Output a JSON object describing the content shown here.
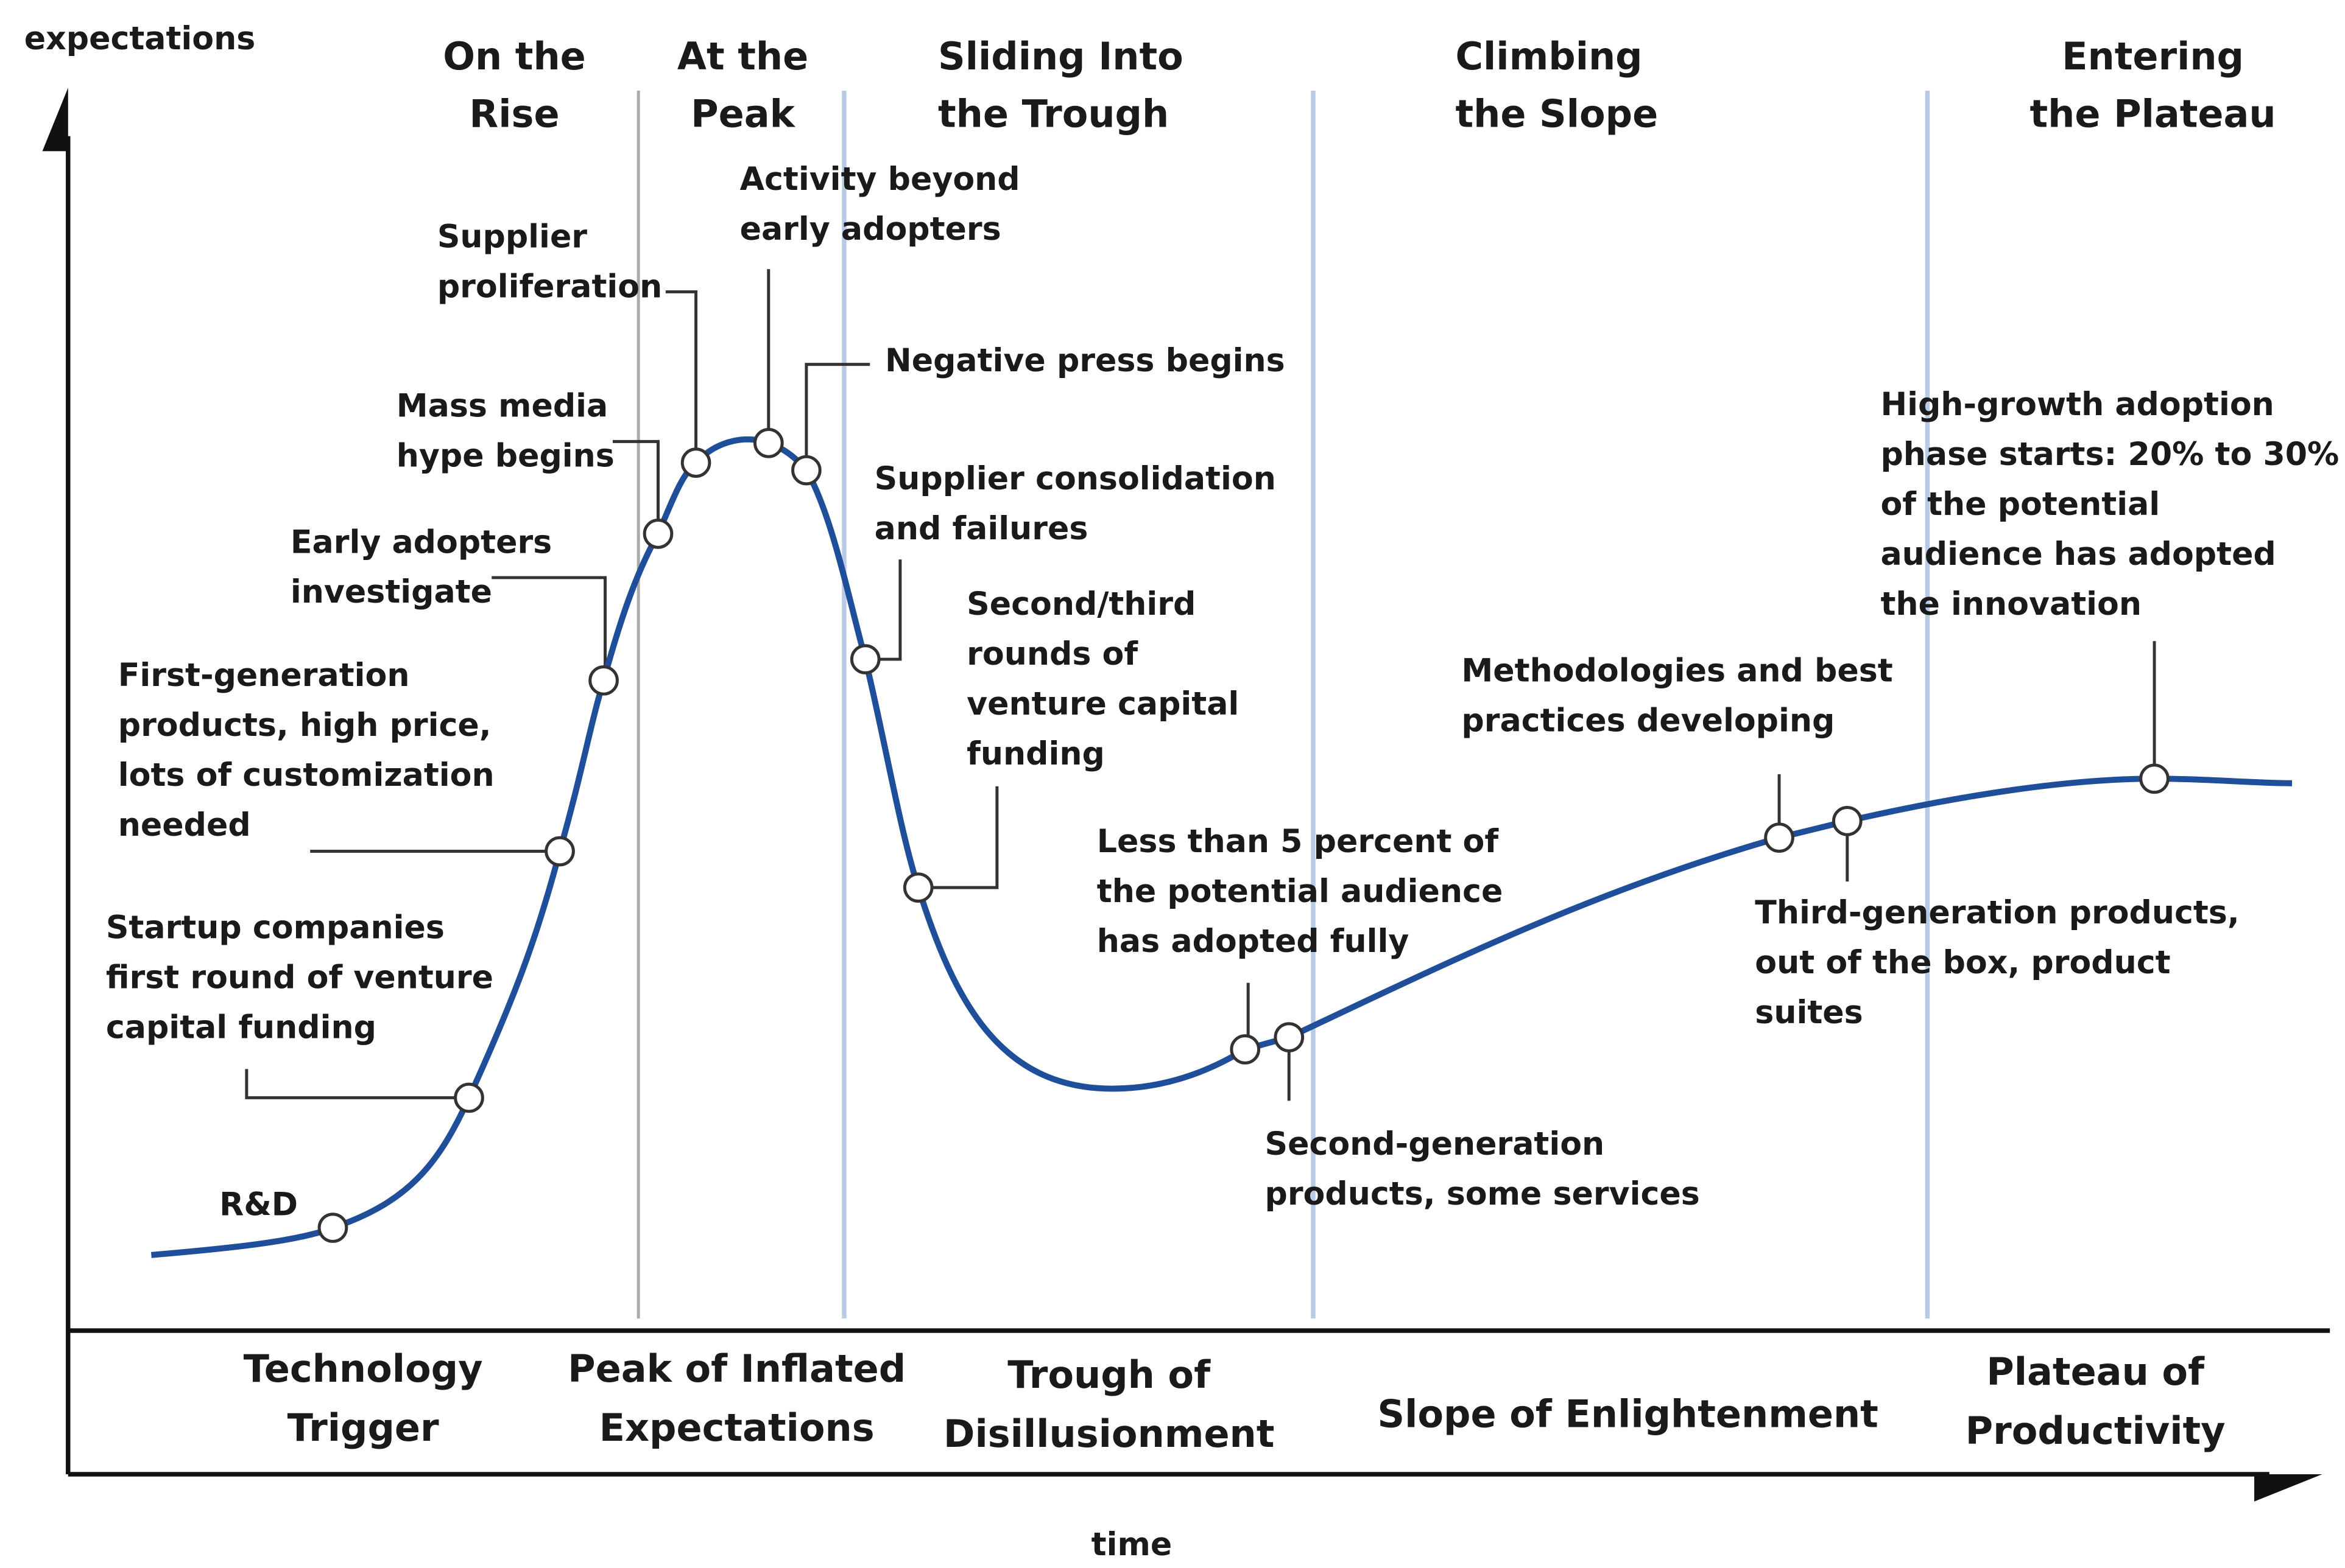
{
  "axes": {
    "y_label": "expectations",
    "x_label": "time"
  },
  "phases_top": [
    {
      "lines": [
        "On the",
        "Rise"
      ]
    },
    {
      "lines": [
        "At the",
        "Peak"
      ]
    },
    {
      "lines": [
        "Sliding Into",
        "the Trough"
      ]
    },
    {
      "lines": [
        "Climbing",
        "the Slope"
      ]
    },
    {
      "lines": [
        "Entering",
        "the Plateau"
      ]
    }
  ],
  "phases_bottom": [
    {
      "lines": [
        "Technology",
        "Trigger"
      ]
    },
    {
      "lines": [
        "Peak of Inflated",
        "Expectations"
      ]
    },
    {
      "lines": [
        "Trough of",
        "Disillusionment"
      ]
    },
    {
      "lines": [
        "Slope of Enlightenment"
      ]
    },
    {
      "lines": [
        "Plateau of",
        "Productivity"
      ]
    }
  ],
  "annotations": [
    {
      "lines": [
        "R&D"
      ]
    },
    {
      "lines": [
        "Startup companies",
        "first round of venture",
        "capital funding"
      ]
    },
    {
      "lines": [
        "First-generation",
        "products, high price,",
        "lots of customization",
        "needed"
      ]
    },
    {
      "lines": [
        "Early adopters",
        "investigate"
      ]
    },
    {
      "lines": [
        "Mass media",
        "hype begins"
      ]
    },
    {
      "lines": [
        "Supplier",
        "proliferation"
      ]
    },
    {
      "lines": [
        "Activity beyond",
        "early adopters"
      ]
    },
    {
      "lines": [
        "Negative press begins"
      ]
    },
    {
      "lines": [
        "Supplier consolidation",
        "and failures"
      ]
    },
    {
      "lines": [
        "Second/third",
        "rounds of",
        "venture capital",
        "funding"
      ]
    },
    {
      "lines": [
        "Less than 5 percent of",
        "the potential audience",
        "has adopted fully"
      ]
    },
    {
      "lines": [
        "Second-generation",
        "products, some services"
      ]
    },
    {
      "lines": [
        "Methodologies and best",
        "practices developing"
      ]
    },
    {
      "lines": [
        "Third-generation products,",
        "out of the box, product",
        "suites"
      ]
    },
    {
      "lines": [
        "High-growth adoption",
        "phase starts: 20% to 30%",
        "of the potential",
        "audience has adopted",
        "the innovation"
      ]
    }
  ]
}
